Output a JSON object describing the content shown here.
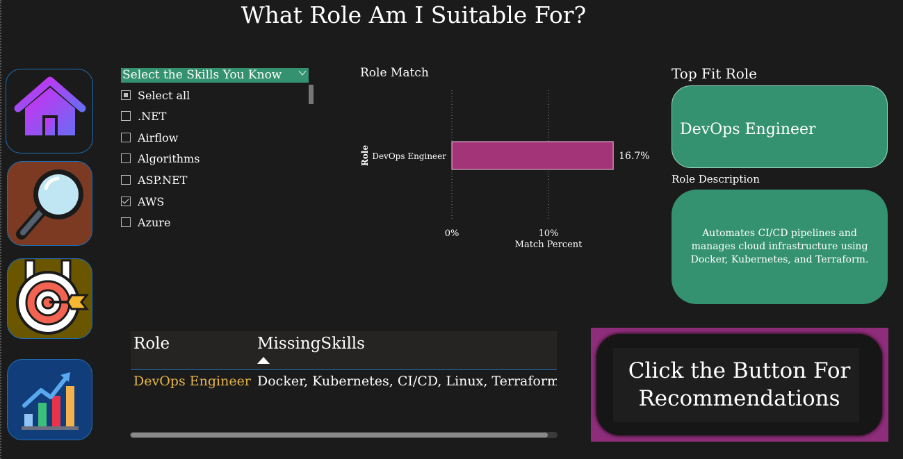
{
  "page": {
    "title": "What Role Am I Suitable For?"
  },
  "nav": [
    {
      "icon": "home-icon"
    },
    {
      "icon": "magnifier-icon"
    },
    {
      "icon": "target-icon"
    },
    {
      "icon": "growth-chart-icon"
    }
  ],
  "slicer": {
    "header": "Select the Skills You Know",
    "items": [
      {
        "label": "Select all",
        "state": "partial"
      },
      {
        "label": ".NET",
        "state": "unchecked"
      },
      {
        "label": "Airflow",
        "state": "unchecked"
      },
      {
        "label": "Algorithms",
        "state": "unchecked"
      },
      {
        "label": "ASP.NET",
        "state": "unchecked"
      },
      {
        "label": "AWS",
        "state": "checked"
      },
      {
        "label": "Azure",
        "state": "unchecked"
      }
    ]
  },
  "chart_data": {
    "type": "bar",
    "orientation": "horizontal",
    "title": "Role Match",
    "xlabel": "Match Percent",
    "ylabel": "Role",
    "categories": [
      "DevOps Engineer"
    ],
    "values": [
      16.7
    ],
    "data_labels": [
      "16.7%"
    ],
    "xticks": [
      "0%",
      "10%"
    ],
    "xlim": [
      0,
      20
    ],
    "color": "#a33478",
    "grid": "vertical dotted"
  },
  "top_fit": {
    "title": "Top Fit Role",
    "role": "DevOps Engineer",
    "desc_title": "Role Description",
    "description": "Automates CI/CD pipelines and manages cloud infrastructure using Docker, Kubernetes, and Terraform."
  },
  "table": {
    "columns": [
      "Role",
      "MissingSkills"
    ],
    "rows": [
      {
        "role": "DevOps Engineer",
        "missing": "Docker, Kubernetes, CI/CD, Linux, Terraform"
      }
    ]
  },
  "recommend": {
    "label": "Click the Button For Recommendations"
  },
  "colors": {
    "accent_green": "#359270",
    "bar": "#a33478",
    "highlight_text": "#e8b64a",
    "frame": "#8e2d7a"
  }
}
